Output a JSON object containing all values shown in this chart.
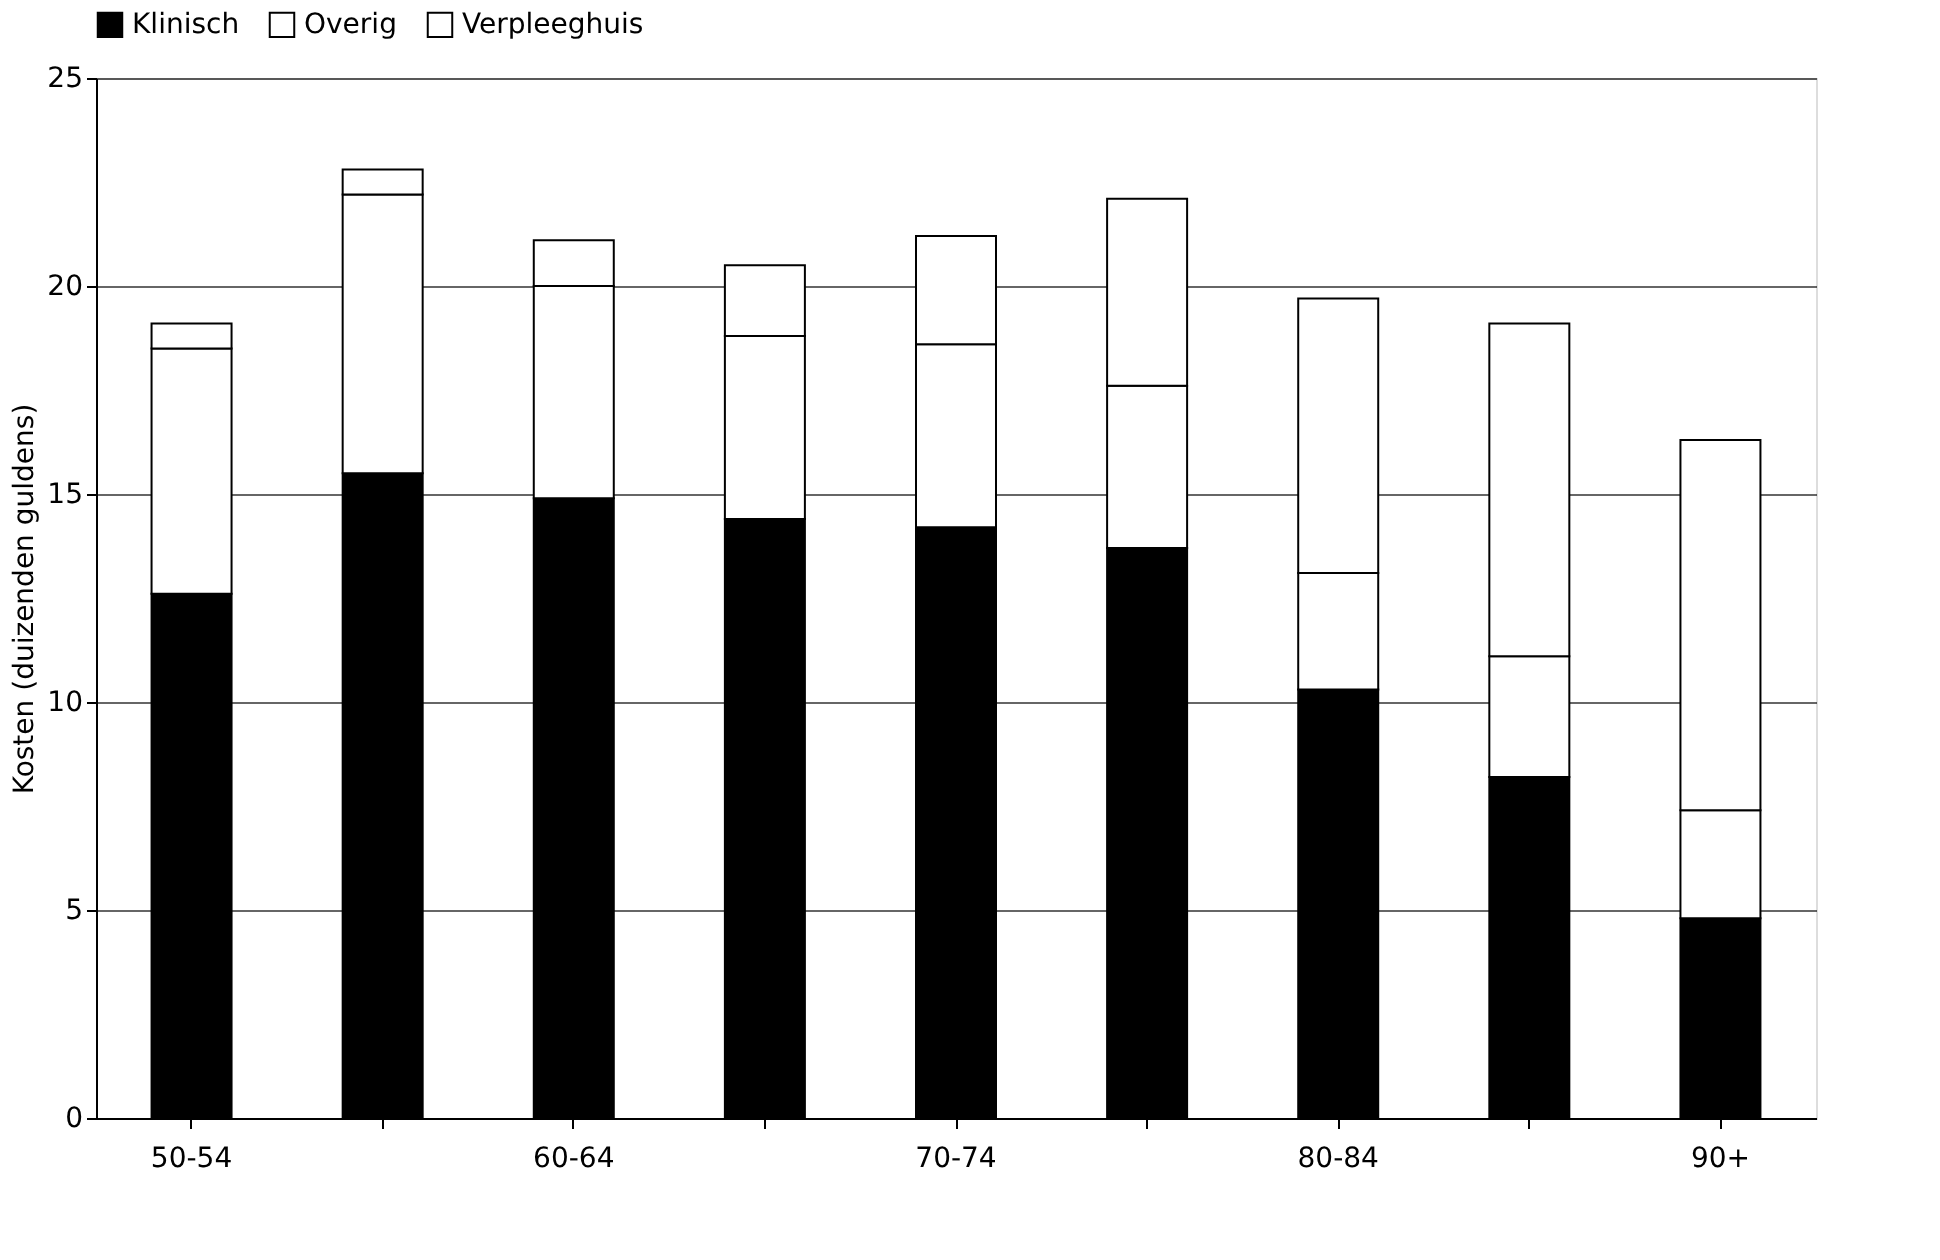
{
  "chart_data": {
    "type": "bar",
    "stacked": true,
    "ylabel": "Kosten (duizenden guldens)",
    "categories": [
      "50-54",
      null,
      "60-64",
      null,
      "70-74",
      null,
      "80-84",
      null,
      "90+"
    ],
    "series": [
      {
        "name": "Klinisch",
        "color": "#000000",
        "values": [
          12.6,
          15.5,
          14.9,
          14.4,
          14.2,
          13.7,
          10.3,
          8.2,
          4.8
        ]
      },
      {
        "name": "Overig",
        "color": "#ffffff",
        "values": [
          5.9,
          6.7,
          5.1,
          4.4,
          4.4,
          3.9,
          2.8,
          2.9,
          2.6
        ]
      },
      {
        "name": "Verpleeghuis",
        "color": "#ffffff",
        "values": [
          0.6,
          0.6,
          1.1,
          1.7,
          2.6,
          4.5,
          6.6,
          8.0,
          8.9
        ]
      }
    ],
    "ylim": [
      0,
      25
    ],
    "yticks": [
      0,
      5,
      10,
      15,
      20,
      25
    ],
    "grid": "y",
    "legend": "top"
  }
}
